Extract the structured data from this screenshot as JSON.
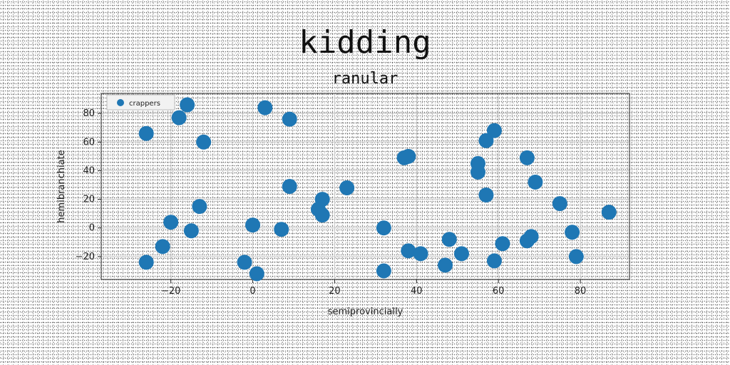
{
  "chart_data": {
    "type": "scatter",
    "title": "kidding",
    "subtitle": "ranular",
    "xlabel": "semiprovincially",
    "ylabel": "hemibranchiate",
    "xlim": [
      -37,
      92
    ],
    "ylim": [
      -36,
      94
    ],
    "xticks": [
      -20,
      0,
      20,
      40,
      60,
      80
    ],
    "yticks": [
      -20,
      0,
      20,
      40,
      60,
      80
    ],
    "grid": true,
    "legend_position": "top-left",
    "series": [
      {
        "name": "crappers",
        "color": "#1f77b4",
        "points": [
          [
            -31,
            88
          ],
          [
            -16,
            86
          ],
          [
            -18,
            77
          ],
          [
            -26,
            66
          ],
          [
            -12,
            60
          ],
          [
            3,
            84
          ],
          [
            9,
            76
          ],
          [
            -20,
            4
          ],
          [
            -13,
            15
          ],
          [
            -15,
            -2
          ],
          [
            -22,
            -13
          ],
          [
            -26,
            -24
          ],
          [
            0,
            2
          ],
          [
            -2,
            -24
          ],
          [
            1,
            -32
          ],
          [
            7,
            -1
          ],
          [
            9,
            29
          ],
          [
            17,
            20
          ],
          [
            16,
            13
          ],
          [
            17,
            9
          ],
          [
            23,
            28
          ],
          [
            32,
            0
          ],
          [
            32,
            -30
          ],
          [
            37,
            49
          ],
          [
            38,
            50
          ],
          [
            38,
            -16
          ],
          [
            41,
            -18
          ],
          [
            47,
            -26
          ],
          [
            48,
            -8
          ],
          [
            51,
            -18
          ],
          [
            55,
            45
          ],
          [
            55,
            39
          ],
          [
            57,
            61
          ],
          [
            59,
            68
          ],
          [
            57,
            23
          ],
          [
            59,
            -23
          ],
          [
            61,
            -11
          ],
          [
            67,
            -9
          ],
          [
            68,
            -6
          ],
          [
            67,
            49
          ],
          [
            69,
            32
          ],
          [
            75,
            17
          ],
          [
            78,
            -3
          ],
          [
            79,
            -20
          ],
          [
            87,
            11
          ]
        ]
      }
    ]
  }
}
